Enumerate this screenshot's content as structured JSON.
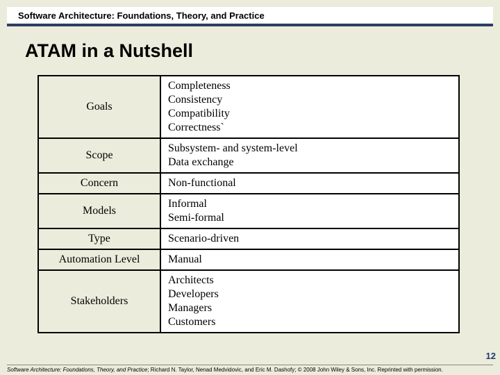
{
  "header": {
    "book_title": "Software Architecture: Foundations, Theory, and Practice"
  },
  "slide": {
    "title": "ATAM in a Nutshell",
    "page_number": "12"
  },
  "table": {
    "rows": [
      {
        "label": "Goals",
        "value": "Completeness\nConsistency\nCompatibility\nCorrectness`"
      },
      {
        "label": "Scope",
        "value": "Subsystem- and system-level\nData exchange"
      },
      {
        "label": "Concern",
        "value": "Non-functional"
      },
      {
        "label": "Models",
        "value": "Informal\nSemi-formal"
      },
      {
        "label": "Type",
        "value": "Scenario-driven"
      },
      {
        "label": "Automation Level",
        "value": "Manual"
      },
      {
        "label": "Stakeholders",
        "value": "Architects\nDevelopers\nManagers\nCustomers"
      }
    ]
  },
  "footer": {
    "citation_title": "Software Architecture: Foundations, Theory, and Practice",
    "citation_rest": "; Richard N. Taylor, Nenad Medvidovic, and Eric M. Dashofy; © 2008 John Wiley & Sons, Inc. Reprinted with permission."
  },
  "colors": {
    "slide_bg": "#ececdc",
    "header_border": "#2b3e63",
    "table_border": "#000000",
    "cell_bg": "#ffffff",
    "label_bg": "#ececdc",
    "page_num_color": "#1e3a6e"
  }
}
